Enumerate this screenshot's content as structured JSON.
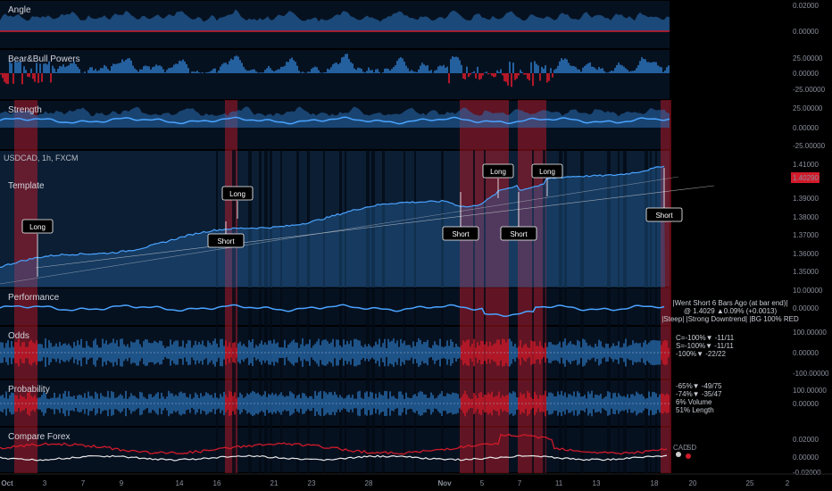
{
  "symbol_label": "USDCAD, 1h, FXCM",
  "current_price": "1.40290",
  "colors": {
    "bg": "#000000",
    "panel": "#0a1626",
    "blue": "#2a6fb5",
    "blueBright": "#4aa3ff",
    "red": "#d11a2a",
    "white": "#e8e8e8"
  },
  "chart_data": [
    {
      "type": "area",
      "title": "Angle",
      "yticks": [
        "0.02000",
        "0.00000"
      ]
    },
    {
      "type": "area",
      "title": "Bear&Bull Powers",
      "yticks": [
        "25.00000",
        "0.00000",
        "-25.00000"
      ]
    },
    {
      "type": "area",
      "title": "Strength",
      "yticks": [
        "25.00000",
        "0.00000",
        "-25.00000"
      ]
    },
    {
      "type": "line",
      "title": "Template",
      "yticks": [
        "1.41000",
        "1.40290",
        "1.39000",
        "1.38000",
        "1.37000",
        "1.36000",
        "1.35000"
      ],
      "signals": [
        {
          "label": "Long",
          "pos": "below"
        },
        {
          "label": "Long",
          "pos": "below"
        },
        {
          "label": "Short",
          "pos": "above"
        },
        {
          "label": "Short",
          "pos": "above"
        },
        {
          "label": "Long",
          "pos": "below"
        },
        {
          "label": "Short",
          "pos": "above"
        },
        {
          "label": "Long",
          "pos": "below"
        },
        {
          "label": "Short",
          "pos": "above"
        }
      ]
    },
    {
      "type": "line",
      "title": "Performance",
      "yticks": [
        "10.00000",
        "0.00000"
      ]
    },
    {
      "type": "area",
      "title": "Odds",
      "yticks": [
        "100.00000",
        "0.00000",
        "-100.00000"
      ]
    },
    {
      "type": "area",
      "title": "Probability",
      "yticks": [
        "100.00000",
        "0.00000"
      ]
    },
    {
      "type": "line",
      "title": "Compare Forex",
      "yticks": [
        "0.02000",
        "0.00000",
        "-0.02000"
      ],
      "series": [
        {
          "name": "CAD"
        },
        {
          "name": "SD"
        }
      ]
    }
  ],
  "info_lines": {
    "perf": [
      "|Went Short 6 Bars Ago (at bar end)|",
      "@ 1.4029   ▲0.09% (+0.0013)",
      "|Steep| |Strong Downtrend| |BG 100% RED"
    ],
    "odds": [
      "C=-100%▼ -11/11",
      "S=-100%▼ -11/11",
      "-100%▼ -22/22"
    ],
    "prob": [
      "-65%▼ -49/75",
      "-74%▼ -35/47",
      "6% Volume",
      "51% Length"
    ]
  },
  "xaxis": [
    "Oct",
    "3",
    "7",
    "9",
    "14",
    "16",
    "21",
    "23",
    "28",
    "Nov",
    "5",
    "7",
    "11",
    "13",
    "18",
    "20",
    "25",
    "2"
  ]
}
